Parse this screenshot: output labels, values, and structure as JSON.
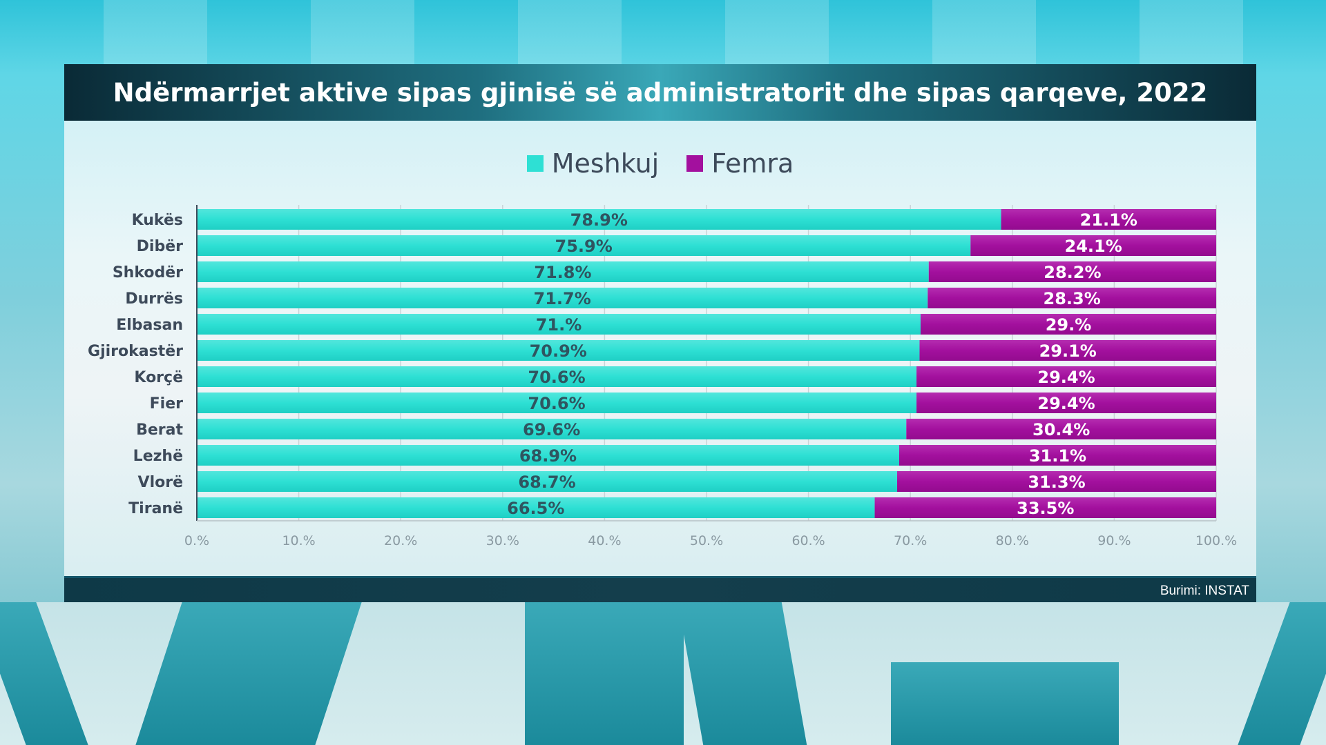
{
  "header": {
    "title": "Ndërmarrjet aktive sipas gjinisë së administratorit dhe sipas qarqeve, 2022"
  },
  "footer": {
    "source": "Burimi: INSTAT"
  },
  "colors": {
    "meshkuj": "#2ee0d4",
    "femra": "#a3109e"
  },
  "chart_data": {
    "type": "bar",
    "orientation": "horizontal",
    "stacked": true,
    "title": "Ndërmarrjet aktive sipas gjinisë së administratorit dhe sipas qarqeve, 2022",
    "categories": [
      "Kukës",
      "Dibër",
      "Shkodër",
      "Durrës",
      "Elbasan",
      "Gjirokastër",
      "Korçë",
      "Fier",
      "Berat",
      "Lezhë",
      "Vlorë",
      "Tiranë"
    ],
    "series": [
      {
        "name": "Meshkuj",
        "values": [
          78.9,
          75.9,
          71.8,
          71.7,
          71.0,
          70.9,
          70.6,
          70.6,
          69.6,
          68.9,
          68.7,
          66.5
        ],
        "labels": [
          "78.9%",
          "75.9%",
          "71.8%",
          "71.7%",
          "71.%",
          "70.9%",
          "70.6%",
          "70.6%",
          "69.6%",
          "68.9%",
          "68.7%",
          "66.5%"
        ]
      },
      {
        "name": "Femra",
        "values": [
          21.1,
          24.1,
          28.2,
          28.3,
          29.0,
          29.1,
          29.4,
          29.4,
          30.4,
          31.1,
          31.3,
          33.5
        ],
        "labels": [
          "21.1%",
          "24.1%",
          "28.2%",
          "28.3%",
          "29.%",
          "29.1%",
          "29.4%",
          "29.4%",
          "30.4%",
          "31.1%",
          "31.3%",
          "33.5%"
        ]
      }
    ],
    "xlim": [
      0,
      100
    ],
    "xticks": [
      0,
      10,
      20,
      30,
      40,
      50,
      60,
      70,
      80,
      90,
      100
    ],
    "xtick_labels": [
      "0.%",
      "10.%",
      "20.%",
      "30.%",
      "40.%",
      "50.%",
      "60.%",
      "70.%",
      "80.%",
      "90.%",
      "100.%"
    ],
    "xlabel": "",
    "ylabel": "",
    "grid": true,
    "legend": "top-center",
    "source": "Burimi: INSTAT"
  }
}
